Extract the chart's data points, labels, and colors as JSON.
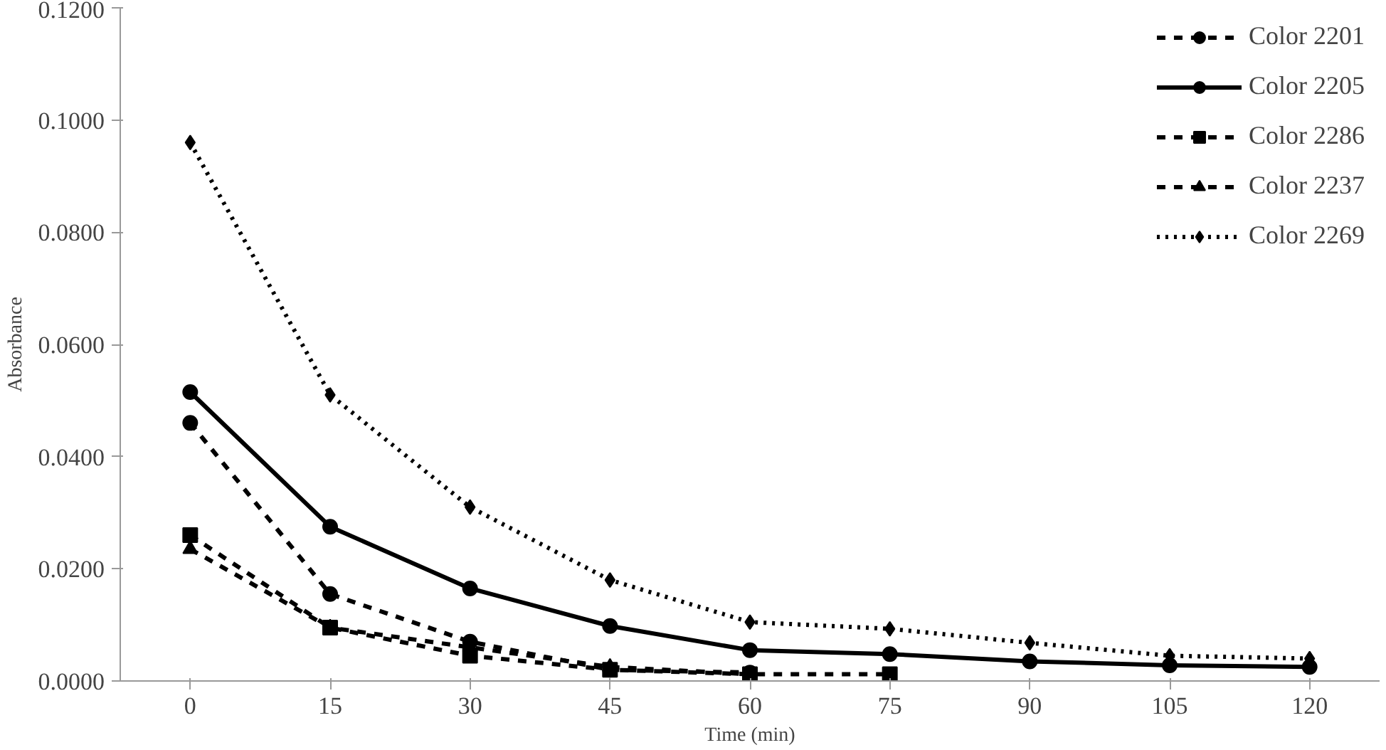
{
  "chart_data": {
    "type": "line",
    "xlabel": "Time (min)",
    "ylabel": "Absorbance",
    "categories": [
      "0",
      "15",
      "30",
      "45",
      "60",
      "75",
      "90",
      "105",
      "120"
    ],
    "ylim": [
      0,
      0.12
    ],
    "yticks": [
      {
        "value": 0,
        "label": "0.0000"
      },
      {
        "value": 0.02,
        "label": "0.0200"
      },
      {
        "value": 0.04,
        "label": "0.0400"
      },
      {
        "value": 0.06,
        "label": "0.0600"
      },
      {
        "value": 0.08,
        "label": "0.0800"
      },
      {
        "value": 0.1,
        "label": "0.1000"
      },
      {
        "value": 0.12,
        "label": "0.1200"
      }
    ],
    "grid": false,
    "legend": "top right",
    "series": [
      {
        "name": "Color 2201",
        "color": "#000000",
        "marker": "circle",
        "line_style": "dashed",
        "values": [
          0.046,
          0.0155,
          0.007,
          0.002,
          0.0015,
          null,
          null,
          null,
          null
        ]
      },
      {
        "name": "Color 2205",
        "color": "#000000",
        "marker": "circle",
        "line_style": "solid",
        "values": [
          0.0515,
          0.0275,
          0.0165,
          0.0098,
          0.0055,
          0.0048,
          0.0035,
          0.0028,
          0.0025
        ]
      },
      {
        "name": "Color 2286",
        "color": "#000000",
        "marker": "square",
        "line_style": "dashed",
        "values": [
          0.026,
          0.0095,
          0.0045,
          0.002,
          0.0012,
          0.0012,
          null,
          null,
          null
        ]
      },
      {
        "name": "Color 2237",
        "color": "#000000",
        "marker": "triangle",
        "line_style": "dashed",
        "values": [
          0.0235,
          0.0095,
          0.006,
          0.0025,
          0.0012,
          null,
          null,
          null,
          null
        ]
      },
      {
        "name": "Color 2269",
        "color": "#000000",
        "marker": "diamond",
        "line_style": "dotted",
        "values": [
          0.096,
          0.051,
          0.031,
          0.018,
          0.0105,
          0.0093,
          0.0068,
          0.0045,
          0.004
        ]
      }
    ]
  }
}
